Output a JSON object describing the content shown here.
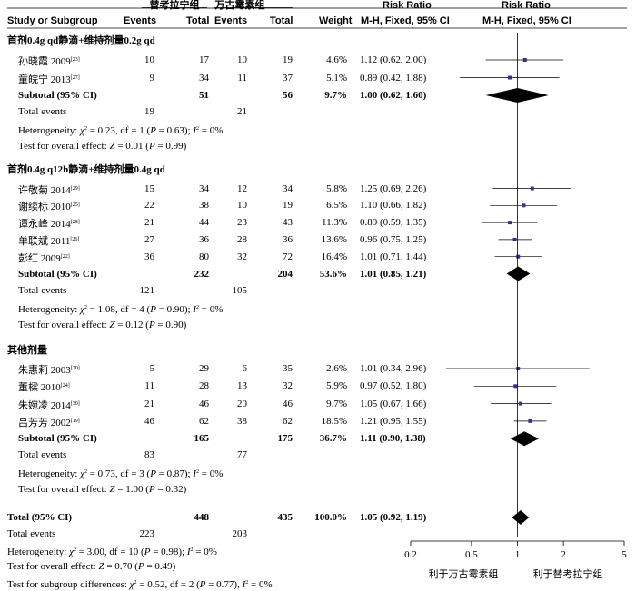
{
  "header": {
    "group1": "替考拉宁组",
    "group2": "万古霉素组",
    "rr1": "Risk Ratio",
    "rr2": "Risk Ratio",
    "study": "Study or Subgroup",
    "events1": "Events",
    "total1": "Total",
    "events2": "Events",
    "total2": "Total",
    "weight": "Weight",
    "method1": "M-H, Fixed, 95% CI",
    "method2": "M-H, Fixed, 95% CI"
  },
  "chart_data": {
    "type": "forest",
    "x_scale": "log",
    "xlim": [
      0.2,
      5
    ],
    "ticks": [
      0.2,
      0.5,
      1,
      2,
      5
    ],
    "tick_labels": [
      "0.2",
      "0.5",
      "1",
      "2",
      "5"
    ],
    "favours_left": "利于万古霉素组",
    "favours_right": "利于替考拉宁组",
    "subgroups": [
      {
        "title": "首剂0.4g qd静滴+维持剂量0.2g qd",
        "studies": [
          {
            "name": "孙晓霞 2009",
            "ref": "[23]",
            "e1": "10",
            "t1": "17",
            "e2": "10",
            "t2": "19",
            "weight": "4.6%",
            "ci": "1.12 (0.62, 2.00)",
            "rr": 1.12,
            "lo": 0.62,
            "hi": 2.0
          },
          {
            "name": "童皖宁 2013",
            "ref": "[27]",
            "e1": "9",
            "t1": "34",
            "e2": "11",
            "t2": "37",
            "weight": "5.1%",
            "ci": "0.89 (0.42, 1.88)",
            "rr": 0.89,
            "lo": 0.42,
            "hi": 1.88
          }
        ],
        "subtotal": {
          "label": "Subtotal (95% CI)",
          "t1": "51",
          "t2": "56",
          "weight": "9.7%",
          "ci": "1.00 (0.62, 1.60)",
          "rr": 1.0,
          "lo": 0.62,
          "hi": 1.6
        },
        "total_events": {
          "label": "Total events",
          "e1": "19",
          "e2": "21"
        },
        "heterogeneity": {
          "prefix": "Heterogeneity: ",
          "chi": "χ",
          "chi_val": " = 0.23, df = 1 (",
          "p": "P",
          "p_val": " = 0.63); ",
          "i2": "I",
          "i2_val": " = 0%"
        },
        "overall": {
          "prefix": "Test for overall effect: ",
          "z": "Z",
          "z_val": " = 0.01 (",
          "p": "P",
          "p_val": " = 0.99)"
        }
      },
      {
        "title": "首剂0.4g q12h静滴+维持剂量0.4g qd",
        "studies": [
          {
            "name": "许敬菊 2014",
            "ref": "[29]",
            "e1": "15",
            "t1": "34",
            "e2": "12",
            "t2": "34",
            "weight": "5.8%",
            "ci": "1.25 (0.69, 2.26)",
            "rr": 1.25,
            "lo": 0.69,
            "hi": 2.26
          },
          {
            "name": "谢续标 2010",
            "ref": "[25]",
            "e1": "22",
            "t1": "38",
            "e2": "10",
            "t2": "19",
            "weight": "6.5%",
            "ci": "1.10 (0.66, 1.82)",
            "rr": 1.1,
            "lo": 0.66,
            "hi": 1.82
          },
          {
            "name": "谭永峰 2014",
            "ref": "[28]",
            "e1": "21",
            "t1": "44",
            "e2": "23",
            "t2": "43",
            "weight": "11.3%",
            "ci": "0.89 (0.59, 1.35)",
            "rr": 0.89,
            "lo": 0.59,
            "hi": 1.35
          },
          {
            "name": "单联斌 2011",
            "ref": "[26]",
            "e1": "27",
            "t1": "36",
            "e2": "28",
            "t2": "36",
            "weight": "13.6%",
            "ci": "0.96 (0.75, 1.25)",
            "rr": 0.96,
            "lo": 0.75,
            "hi": 1.25
          },
          {
            "name": "彭红 2009",
            "ref": "[22]",
            "e1": "36",
            "t1": "80",
            "e2": "32",
            "t2": "72",
            "weight": "16.4%",
            "ci": "1.01 (0.71, 1.44)",
            "rr": 1.01,
            "lo": 0.71,
            "hi": 1.44
          }
        ],
        "subtotal": {
          "label": "Subtotal (95% CI)",
          "t1": "232",
          "t2": "204",
          "weight": "53.6%",
          "ci": "1.01 (0.85, 1.21)",
          "rr": 1.01,
          "lo": 0.85,
          "hi": 1.21
        },
        "total_events": {
          "label": "Total events",
          "e1": "121",
          "e2": "105"
        },
        "heterogeneity": {
          "prefix": "Heterogeneity: ",
          "chi": "χ",
          "chi_val": " = 1.08, df = 4 (",
          "p": "P",
          "p_val": " = 0.90); ",
          "i2": "I",
          "i2_val": " = 0%"
        },
        "overall": {
          "prefix": "Test for overall effect: ",
          "z": "Z",
          "z_val": " = 0.12 (",
          "p": "P",
          "p_val": " = 0.90)"
        }
      },
      {
        "title": "其他剂量",
        "studies": [
          {
            "name": "朱惠莉 2003",
            "ref": "[20]",
            "e1": "5",
            "t1": "29",
            "e2": "6",
            "t2": "35",
            "weight": "2.6%",
            "ci": "1.01 (0.34, 2.96)",
            "rr": 1.01,
            "lo": 0.34,
            "hi": 2.96
          },
          {
            "name": "董樑 2010",
            "ref": "[24]",
            "e1": "11",
            "t1": "28",
            "e2": "13",
            "t2": "32",
            "weight": "5.9%",
            "ci": "0.97 (0.52, 1.80)",
            "rr": 0.97,
            "lo": 0.52,
            "hi": 1.8
          },
          {
            "name": "朱婉凌 2014",
            "ref": "[30]",
            "e1": "21",
            "t1": "46",
            "e2": "20",
            "t2": "46",
            "weight": "9.7%",
            "ci": "1.05 (0.67, 1.66)",
            "rr": 1.05,
            "lo": 0.67,
            "hi": 1.66
          },
          {
            "name": "吕芳芳 2002",
            "ref": "[19]",
            "e1": "46",
            "t1": "62",
            "e2": "38",
            "t2": "62",
            "weight": "18.5%",
            "ci": "1.21 (0.95, 1.55)",
            "rr": 1.21,
            "lo": 0.95,
            "hi": 1.55
          }
        ],
        "subtotal": {
          "label": "Subtotal (95% CI)",
          "t1": "165",
          "t2": "175",
          "weight": "36.7%",
          "ci": "1.11 (0.90, 1.38)",
          "rr": 1.11,
          "lo": 0.9,
          "hi": 1.38
        },
        "total_events": {
          "label": "Total events",
          "e1": "83",
          "e2": "77"
        },
        "heterogeneity": {
          "prefix": "Heterogeneity: ",
          "chi": "χ",
          "chi_val": " = 0.73, df = 3 (",
          "p": "P",
          "p_val": " = 0.87); ",
          "i2": "I",
          "i2_val": " = 0%"
        },
        "overall": {
          "prefix": "Test for overall effect: ",
          "z": "Z",
          "z_val": " = 1.00 (",
          "p": "P",
          "p_val": " = 0.32)"
        }
      }
    ],
    "total": {
      "label": "Total (95% CI)",
      "t1": "448",
      "t2": "435",
      "weight": "100.0%",
      "ci": "1.05 (0.92, 1.19)",
      "rr": 1.05,
      "lo": 0.92,
      "hi": 1.19
    },
    "total_events": {
      "label": "Total events",
      "e1": "223",
      "e2": "203"
    },
    "heterogeneity": {
      "prefix": "Heterogeneity: ",
      "chi": "χ",
      "chi_val": " = 3.00, df = 10 (",
      "p": "P",
      "p_val": " = 0.98); ",
      "i2": "I",
      "i2_val": " = 0%"
    },
    "overall": {
      "prefix": "Test for overall effect: ",
      "z": "Z",
      "z_val": " = 0.70 (",
      "p": "P",
      "p_val": " = 0.49)"
    },
    "subgroup_diff": {
      "prefix": "Test for subgroup differences: ",
      "chi": "χ",
      "chi_val": " = 0.52, df = 2 (",
      "p": "P",
      "p_val": " = 0.77), ",
      "i2": "I",
      "i2_val": " = 0%"
    }
  },
  "colors": {
    "marker": "#3a2f8c",
    "diamond": "#000000",
    "line": "#000000"
  }
}
